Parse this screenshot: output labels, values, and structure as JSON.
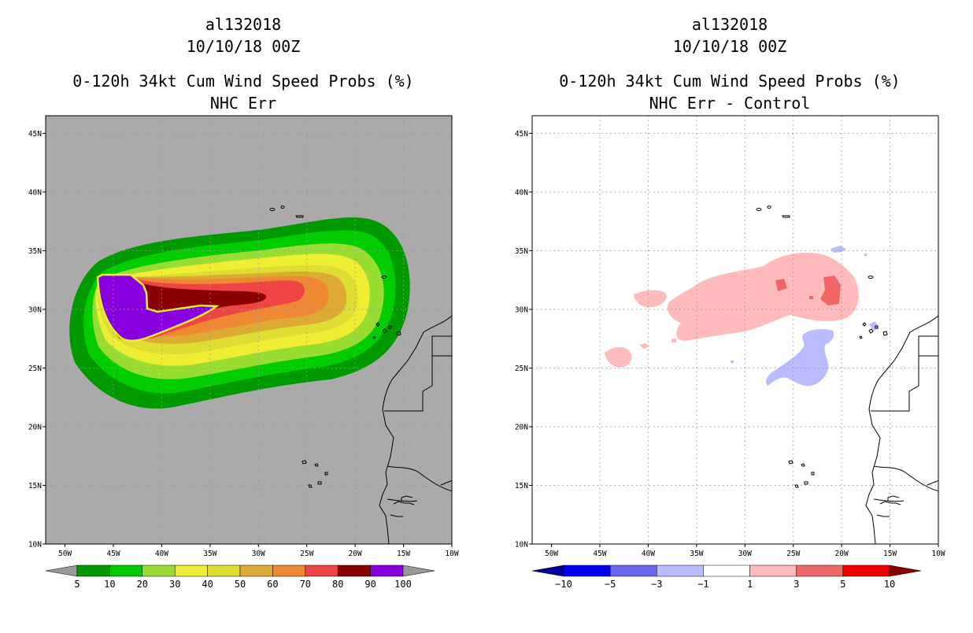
{
  "charts": [
    {
      "title_lines": [
        "al132018",
        "10/10/18 00Z"
      ],
      "subtitle_lines": [
        "0-120h 34kt Cum Wind Speed Probs (%)",
        "NHC Err"
      ],
      "map_background": "#aaaaaa",
      "colorbar": {
        "labels": [
          "5",
          "10",
          "20",
          "30",
          "40",
          "50",
          "60",
          "70",
          "80",
          "90",
          "100"
        ],
        "colors": [
          "#009900",
          "#00cc00",
          "#99dd33",
          "#eeee33",
          "#dddd33",
          "#ddaa33",
          "#ee8833",
          "#ee4444",
          "#880000",
          "#8800dd"
        ],
        "end_low": "#999999",
        "end_high": "#999999"
      }
    },
    {
      "title_lines": [
        "al132018",
        "10/10/18 00Z"
      ],
      "subtitle_lines": [
        "0-120h 34kt Cum Wind Speed Probs (%)",
        "NHC Err - Control"
      ],
      "map_background": "#ffffff",
      "colorbar": {
        "labels": [
          "−10",
          "−5",
          "−3",
          "−1",
          "1",
          "3",
          "5",
          "10"
        ],
        "colors": [
          "#0000ee",
          "#6666ee",
          "#bbbbff",
          "#ffffff",
          "#ffbbbb",
          "#ee6666",
          "#ee0000"
        ],
        "end_low": "#000099",
        "end_high": "#880000"
      }
    }
  ],
  "chart_data": [
    {
      "type": "heatmap",
      "title": "0-120h 34kt Cum Wind Speed Probs (%)",
      "subtitle": "NHC Err",
      "storm": "al132018",
      "date": "10/10/18 00Z",
      "units": "%",
      "x_ticks": [
        "50W",
        "45W",
        "40W",
        "35W",
        "30W",
        "25W",
        "20W",
        "15W",
        "10W"
      ],
      "y_ticks": [
        "10N",
        "15N",
        "20N",
        "25N",
        "30N",
        "35N",
        "40N",
        "45N"
      ],
      "xlim": [
        -52,
        -10
      ],
      "ylim": [
        10,
        46.5
      ],
      "contour_levels": [
        5,
        10,
        20,
        30,
        40,
        50,
        60,
        70,
        80,
        90,
        100
      ]
    },
    {
      "type": "heatmap",
      "title": "0-120h 34kt Cum Wind Speed Probs (%)",
      "subtitle": "NHC Err - Control",
      "storm": "al132018",
      "date": "10/10/18 00Z",
      "units": "%",
      "x_ticks": [
        "50W",
        "45W",
        "40W",
        "35W",
        "30W",
        "25W",
        "20W",
        "15W",
        "10W"
      ],
      "y_ticks": [
        "10N",
        "15N",
        "20N",
        "25N",
        "30N",
        "35N",
        "40N",
        "45N"
      ],
      "xlim": [
        -52,
        -10
      ],
      "ylim": [
        10,
        46.5
      ],
      "contour_levels": [
        -10,
        -5,
        -3,
        -1,
        1,
        3,
        5,
        10
      ]
    }
  ]
}
